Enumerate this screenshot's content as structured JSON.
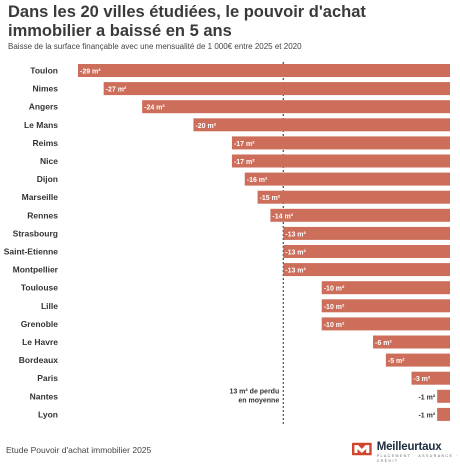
{
  "header": {
    "title": "Dans les 20 villes étudiées, le pouvoir d'achat immobilier a baissé en 5 ans",
    "subtitle": "Baisse de la surface finançable avec une mensualité de 1 000€ entre 2025 et 2020"
  },
  "chart_data": {
    "type": "bar",
    "orientation": "horizontal",
    "categories": [
      "Toulon",
      "Nimes",
      "Angers",
      "Le Mans",
      "Reims",
      "Nice",
      "Dijon",
      "Marseille",
      "Rennes",
      "Strasbourg",
      "Saint-Etienne",
      "Montpellier",
      "Toulouse",
      "Lille",
      "Grenoble",
      "Le Havre",
      "Bordeaux",
      "Paris",
      "Nantes",
      "Lyon"
    ],
    "values": [
      -29,
      -27,
      -24,
      -20,
      -17,
      -17,
      -16,
      -15,
      -14,
      -13,
      -13,
      -13,
      -10,
      -10,
      -10,
      -6,
      -5,
      -3,
      -1,
      -1
    ],
    "value_labels": [
      "-29 m²",
      "-27 m²",
      "-24 m²",
      "-20 m²",
      "-17 m²",
      "-17 m²",
      "-16 m²",
      "-15 m²",
      "-14 m²",
      "-13 m²",
      "-13 m²",
      "-13 m²",
      "-10 m²",
      "-10 m²",
      "-10 m²",
      "-6 m²",
      "-5 m²",
      "-3 m²",
      "-1 m²",
      "-1 m²"
    ],
    "reference_value": -13,
    "reference_label_lines": [
      "13 m² de perdu",
      "en moyenne"
    ],
    "xlim": [
      -29,
      0
    ],
    "bar_color": "#cd6e5a",
    "label_inside_color": "#ffffff",
    "label_outside_color": "#333333",
    "grid": false
  },
  "footer": {
    "source": "Etude Pouvoir d'achat immobilier 2025",
    "brand_name": "Meilleurtaux",
    "brand_tagline": "PLACEMENT · ASSURANCE · CRÉDIT",
    "brand_color": "#d2452c"
  }
}
